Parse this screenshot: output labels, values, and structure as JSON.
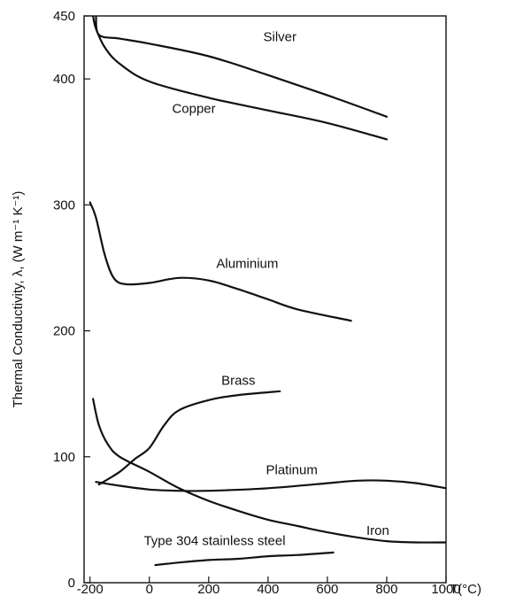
{
  "chart_data": {
    "type": "line",
    "xlabel": "T(°C)",
    "ylabel": "Thermal Conductivity, λ, (W m⁻¹ K⁻¹)",
    "xlim": [
      -220,
      1000
    ],
    "ylim": [
      0,
      450
    ],
    "xticks": [
      -200,
      0,
      200,
      400,
      600,
      800,
      1000
    ],
    "xtick_labels": [
      "-200",
      "0",
      "200",
      "400",
      "600",
      "800",
      "1000"
    ],
    "yticks": [
      0,
      100,
      200,
      300,
      400,
      450
    ],
    "ytick_labels": [
      "0",
      "100",
      "200",
      "300",
      "400",
      "450"
    ],
    "grid": false,
    "series": [
      {
        "name": "Silver",
        "label_at": [
          440,
          430
        ],
        "points": [
          [
            -180,
            450
          ],
          [
            -170,
            435
          ],
          [
            -100,
            432
          ],
          [
            0,
            428
          ],
          [
            200,
            418
          ],
          [
            400,
            403
          ],
          [
            600,
            387
          ],
          [
            800,
            370
          ]
        ]
      },
      {
        "name": "Copper",
        "label_at": [
          150,
          373
        ],
        "points": [
          [
            -190,
            450
          ],
          [
            -180,
            440
          ],
          [
            -150,
            425
          ],
          [
            -100,
            412
          ],
          [
            0,
            398
          ],
          [
            200,
            385
          ],
          [
            400,
            375
          ],
          [
            600,
            365
          ],
          [
            800,
            352
          ]
        ]
      },
      {
        "name": "Aluminium",
        "label_at": [
          330,
          250
        ],
        "points": [
          [
            -200,
            302
          ],
          [
            -180,
            290
          ],
          [
            -150,
            260
          ],
          [
            -120,
            242
          ],
          [
            -80,
            237
          ],
          [
            0,
            238
          ],
          [
            100,
            242
          ],
          [
            200,
            240
          ],
          [
            300,
            233
          ],
          [
            400,
            225
          ],
          [
            500,
            217
          ],
          [
            680,
            208
          ]
        ]
      },
      {
        "name": "Brass",
        "label_at": [
          300,
          157
        ],
        "points": [
          [
            -170,
            78
          ],
          [
            -100,
            88
          ],
          [
            -50,
            98
          ],
          [
            0,
            107
          ],
          [
            50,
            125
          ],
          [
            100,
            137
          ],
          [
            200,
            145
          ],
          [
            300,
            149
          ],
          [
            440,
            152
          ]
        ]
      },
      {
        "name": "Platinum",
        "label_at": [
          480,
          86
        ],
        "points": [
          [
            -180,
            80
          ],
          [
            -100,
            77
          ],
          [
            0,
            74
          ],
          [
            100,
            73
          ],
          [
            200,
            73
          ],
          [
            400,
            75
          ],
          [
            600,
            79
          ],
          [
            700,
            81
          ],
          [
            800,
            81
          ],
          [
            900,
            79
          ],
          [
            1000,
            75
          ]
        ]
      },
      {
        "name": "Iron",
        "label_at": [
          770,
          38
        ],
        "points": [
          [
            -190,
            146
          ],
          [
            -170,
            125
          ],
          [
            -140,
            110
          ],
          [
            -100,
            100
          ],
          [
            0,
            88
          ],
          [
            100,
            75
          ],
          [
            200,
            65
          ],
          [
            300,
            57
          ],
          [
            400,
            50
          ],
          [
            500,
            45
          ],
          [
            600,
            40
          ],
          [
            700,
            36
          ],
          [
            800,
            33
          ],
          [
            900,
            32
          ],
          [
            1000,
            32
          ]
        ]
      },
      {
        "name": "Type 304 stainless steel",
        "label_at": [
          220,
          30
        ],
        "points": [
          [
            20,
            14
          ],
          [
            100,
            16
          ],
          [
            200,
            18
          ],
          [
            300,
            19
          ],
          [
            400,
            21
          ],
          [
            500,
            22
          ],
          [
            620,
            24
          ]
        ]
      }
    ]
  }
}
